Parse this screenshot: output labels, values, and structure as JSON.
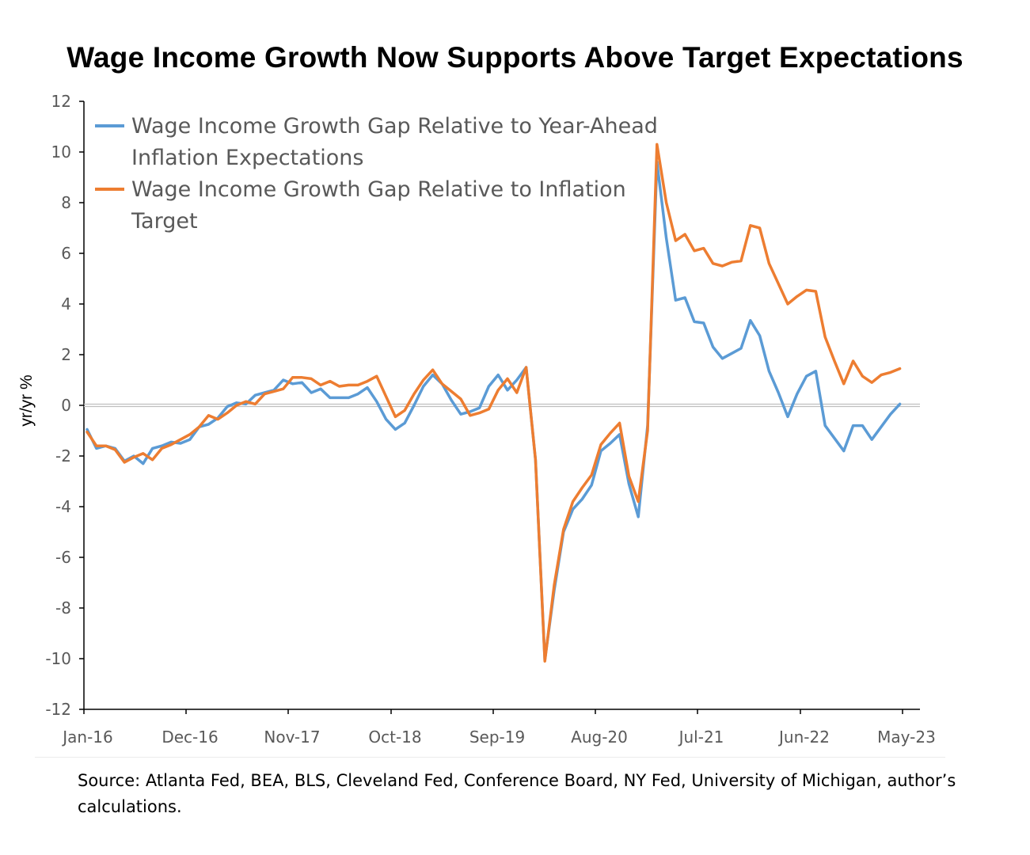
{
  "title": "Wage Income Growth Now Supports Above Target Expectations",
  "source": "Source: Atlanta Fed, BEA, BLS, Cleveland Fed, Conference Board, NY Fed, University of Michigan, author’s calculations.",
  "chart_data": {
    "type": "line",
    "title": "Wage Income Growth Now Supports Above Target Expectations",
    "xlabel": "",
    "ylabel": "yr/yr %",
    "ylim": [
      -12,
      12
    ],
    "yticks": [
      "12",
      "10",
      "8",
      "6",
      "4",
      "2",
      "0",
      "-2",
      "-4",
      "-6",
      "-8",
      "-10",
      "-12"
    ],
    "xticks": [
      "Jan-16",
      "Dec-16",
      "Nov-17",
      "Oct-18",
      "Sep-19",
      "Aug-20",
      "Jul-21",
      "Jun-22",
      "May-23"
    ],
    "x_range": [
      "Jan-16",
      "Jun-23"
    ],
    "zero_line": true,
    "grid": false,
    "legend_position": "top-left",
    "colors": {
      "year_ahead": "#5b9bd5",
      "target": "#ed7d31",
      "zero_line": "#bfbfbf"
    },
    "series": [
      {
        "name": "Wage Income Growth Gap Relative to Year-Ahead Inflation Expectations",
        "legend_lines": [
          "Wage Income Growth Gap Relative to Year-Ahead",
          "Inflation Expectations"
        ],
        "color": "#5b9bd5",
        "values": [
          -0.95,
          -1.7,
          -1.6,
          -1.7,
          -2.2,
          -2.0,
          -2.3,
          -1.7,
          -1.6,
          -1.45,
          -1.5,
          -1.35,
          -0.85,
          -0.75,
          -0.5,
          -0.05,
          0.1,
          0.05,
          0.4,
          0.5,
          0.6,
          1.0,
          0.85,
          0.9,
          0.5,
          0.65,
          0.3,
          0.3,
          0.3,
          0.45,
          0.7,
          0.15,
          -0.55,
          -0.95,
          -0.7,
          0.0,
          0.75,
          1.2,
          0.85,
          0.2,
          -0.35,
          -0.25,
          -0.1,
          0.75,
          1.2,
          0.6,
          1.0,
          1.5,
          -2.15,
          -10.05,
          -7.3,
          -5.0,
          -4.1,
          -3.7,
          -3.15,
          -1.8,
          -1.5,
          -1.15,
          -3.1,
          -4.4,
          -0.8,
          9.6,
          6.6,
          4.15,
          4.25,
          3.3,
          3.25,
          2.3,
          1.85,
          2.05,
          2.25,
          3.35,
          2.75,
          1.35,
          0.5,
          -0.45,
          0.45,
          1.15,
          1.35,
          -0.8,
          -1.3,
          -1.8,
          -0.8,
          -0.8,
          -1.35,
          -0.85,
          -0.35,
          0.05
        ]
      },
      {
        "name": "Wage Income Growth Gap Relative to Inflation Target",
        "legend_lines": [
          "Wage Income Growth Gap Relative to Inflation",
          "Target"
        ],
        "color": "#ed7d31",
        "values": [
          -1.05,
          -1.6,
          -1.6,
          -1.75,
          -2.25,
          -2.05,
          -1.9,
          -2.15,
          -1.7,
          -1.55,
          -1.35,
          -1.15,
          -0.85,
          -0.4,
          -0.55,
          -0.3,
          0.0,
          0.15,
          0.05,
          0.45,
          0.55,
          0.65,
          1.1,
          1.1,
          1.05,
          0.8,
          0.95,
          0.75,
          0.8,
          0.8,
          0.95,
          1.15,
          0.35,
          -0.45,
          -0.2,
          0.45,
          1.0,
          1.4,
          0.85,
          0.55,
          0.25,
          -0.4,
          -0.3,
          -0.15,
          0.6,
          1.05,
          0.5,
          1.5,
          -2.15,
          -10.1,
          -7.1,
          -4.9,
          -3.8,
          -3.25,
          -2.75,
          -1.55,
          -1.1,
          -0.7,
          -2.8,
          -3.8,
          -1.0,
          10.3,
          8.0,
          6.5,
          6.75,
          6.1,
          6.2,
          5.6,
          5.5,
          5.65,
          5.7,
          7.1,
          7.0,
          5.6,
          4.8,
          4.0,
          4.3,
          4.55,
          4.5,
          2.7,
          1.75,
          0.85,
          1.75,
          1.15,
          0.9,
          1.2,
          1.3,
          1.45
        ]
      }
    ]
  }
}
